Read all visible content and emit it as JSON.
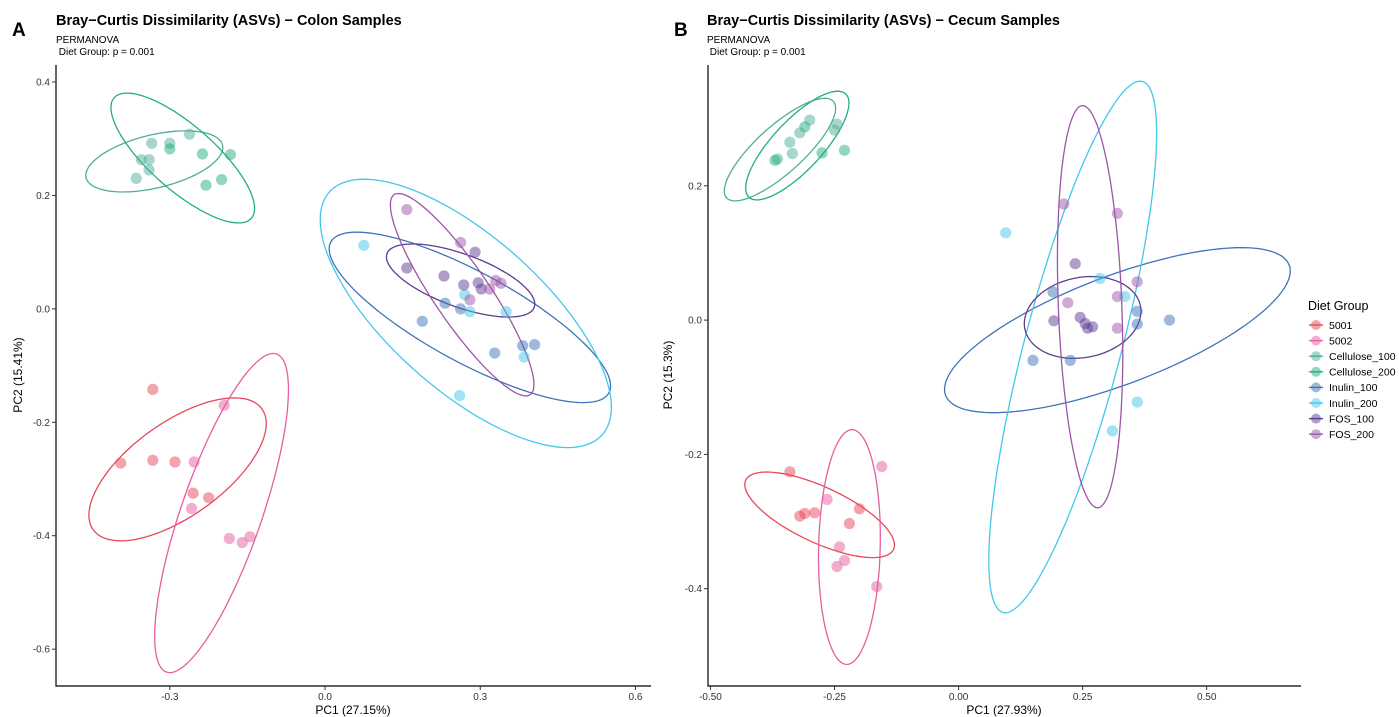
{
  "legend": {
    "title": "Diet Group",
    "groups": [
      "5001",
      "5002",
      "Cellulose_100",
      "Cellulose_200",
      "Inulin_100",
      "Inulin_200",
      "FOS_100",
      "FOS_200"
    ]
  },
  "colors": {
    "5001": "#e8485a",
    "5002": "#e75da0",
    "Cellulose_100": "#4fae99",
    "Cellulose_200": "#23ad85",
    "Inulin_100": "#3f74b6",
    "Inulin_200": "#43c8ea",
    "FOS_100": "#5f3d93",
    "FOS_200": "#9e55a9"
  },
  "chart_data": [
    {
      "type": "scatter",
      "tag": "A",
      "title": "Bray−Curtis Dissimilarity (ASVs) − Colon Samples",
      "subtitle_line1": "PERMANOVA",
      "subtitle_line2": " Diet Group: p = 0.001",
      "xlabel": "PC1 (27.15%)",
      "ylabel": "PC2 (15.41%)",
      "xlim": [
        -0.52,
        0.63
      ],
      "ylim": [
        -0.665,
        0.43
      ],
      "xticks": [
        -0.3,
        0.0,
        0.3,
        0.6
      ],
      "xtick_labels": [
        "-0.3",
        "0.0",
        "0.3",
        "0.6"
      ],
      "yticks": [
        -0.6,
        -0.4,
        -0.2,
        0.0,
        0.2,
        0.4
      ],
      "ytick_labels": [
        "-0.6",
        "-0.4",
        "-0.2",
        "0.0",
        "0.2",
        "0.4"
      ],
      "grid": false,
      "ellipses": [
        {
          "group": "5001",
          "cx": -0.285,
          "cy": -0.283,
          "rx": 0.195,
          "ry": 0.085,
          "angle": 32
        },
        {
          "group": "5002",
          "cx": -0.2,
          "cy": -0.36,
          "rx": 0.3,
          "ry": 0.077,
          "angle": 69
        },
        {
          "group": "Cellulose_100",
          "cx": -0.33,
          "cy": 0.26,
          "rx": 0.135,
          "ry": 0.047,
          "angle": 12
        },
        {
          "group": "Cellulose_200",
          "cx": -0.275,
          "cy": 0.266,
          "rx": 0.17,
          "ry": 0.059,
          "angle": -38
        },
        {
          "group": "Inulin_100",
          "cx": 0.28,
          "cy": -0.015,
          "rx": 0.3,
          "ry": 0.081,
          "angle": -26
        },
        {
          "group": "Inulin_200",
          "cx": 0.272,
          "cy": -0.008,
          "rx": 0.34,
          "ry": 0.14,
          "angle": -38
        },
        {
          "group": "FOS_100",
          "cx": 0.262,
          "cy": 0.05,
          "rx": 0.15,
          "ry": 0.047,
          "angle": -18
        },
        {
          "group": "FOS_200",
          "cx": 0.265,
          "cy": 0.025,
          "rx": 0.22,
          "ry": 0.052,
          "angle": -53
        }
      ],
      "points": [
        {
          "group": "5001",
          "x": -0.395,
          "y": -0.272
        },
        {
          "group": "5001",
          "x": -0.333,
          "y": -0.142
        },
        {
          "group": "5001",
          "x": -0.333,
          "y": -0.267
        },
        {
          "group": "5001",
          "x": -0.29,
          "y": -0.27
        },
        {
          "group": "5001",
          "x": -0.255,
          "y": -0.325
        },
        {
          "group": "5001",
          "x": -0.225,
          "y": -0.333
        },
        {
          "group": "5002",
          "x": -0.253,
          "y": -0.27
        },
        {
          "group": "5002",
          "x": -0.258,
          "y": -0.352
        },
        {
          "group": "5002",
          "x": -0.195,
          "y": -0.17
        },
        {
          "group": "5002",
          "x": -0.185,
          "y": -0.405
        },
        {
          "group": "5002",
          "x": -0.16,
          "y": -0.412
        },
        {
          "group": "5002",
          "x": -0.145,
          "y": -0.402
        },
        {
          "group": "Cellulose_100",
          "x": -0.365,
          "y": 0.23
        },
        {
          "group": "Cellulose_100",
          "x": -0.355,
          "y": 0.263
        },
        {
          "group": "Cellulose_100",
          "x": -0.34,
          "y": 0.245
        },
        {
          "group": "Cellulose_100",
          "x": -0.34,
          "y": 0.263
        },
        {
          "group": "Cellulose_100",
          "x": -0.335,
          "y": 0.292
        },
        {
          "group": "Cellulose_100",
          "x": -0.3,
          "y": 0.292
        },
        {
          "group": "Cellulose_100",
          "x": -0.262,
          "y": 0.308
        },
        {
          "group": "Cellulose_200",
          "x": -0.3,
          "y": 0.282
        },
        {
          "group": "Cellulose_200",
          "x": -0.237,
          "y": 0.273
        },
        {
          "group": "Cellulose_200",
          "x": -0.23,
          "y": 0.218
        },
        {
          "group": "Cellulose_200",
          "x": -0.2,
          "y": 0.228
        },
        {
          "group": "Cellulose_200",
          "x": -0.183,
          "y": 0.272
        },
        {
          "group": "Inulin_100",
          "x": 0.188,
          "y": -0.022
        },
        {
          "group": "Inulin_100",
          "x": 0.232,
          "y": 0.01
        },
        {
          "group": "Inulin_100",
          "x": 0.262,
          "y": 0.0
        },
        {
          "group": "Inulin_100",
          "x": 0.328,
          "y": -0.078
        },
        {
          "group": "Inulin_100",
          "x": 0.382,
          "y": -0.065
        },
        {
          "group": "Inulin_100",
          "x": 0.405,
          "y": -0.063
        },
        {
          "group": "Inulin_200",
          "x": 0.075,
          "y": 0.112
        },
        {
          "group": "Inulin_200",
          "x": 0.27,
          "y": 0.025
        },
        {
          "group": "Inulin_200",
          "x": 0.28,
          "y": -0.005
        },
        {
          "group": "Inulin_200",
          "x": 0.35,
          "y": -0.005
        },
        {
          "group": "Inulin_200",
          "x": 0.385,
          "y": -0.085
        },
        {
          "group": "Inulin_200",
          "x": 0.26,
          "y": -0.153
        },
        {
          "group": "FOS_100",
          "x": 0.158,
          "y": 0.072
        },
        {
          "group": "FOS_100",
          "x": 0.23,
          "y": 0.058
        },
        {
          "group": "FOS_100",
          "x": 0.268,
          "y": 0.042
        },
        {
          "group": "FOS_100",
          "x": 0.29,
          "y": 0.1
        },
        {
          "group": "FOS_100",
          "x": 0.296,
          "y": 0.046
        },
        {
          "group": "FOS_100",
          "x": 0.302,
          "y": 0.035
        },
        {
          "group": "FOS_200",
          "x": 0.158,
          "y": 0.175
        },
        {
          "group": "FOS_200",
          "x": 0.262,
          "y": 0.117
        },
        {
          "group": "FOS_200",
          "x": 0.28,
          "y": 0.016
        },
        {
          "group": "FOS_200",
          "x": 0.318,
          "y": 0.035
        },
        {
          "group": "FOS_200",
          "x": 0.33,
          "y": 0.05
        },
        {
          "group": "FOS_200",
          "x": 0.34,
          "y": 0.045
        }
      ]
    },
    {
      "type": "scatter",
      "tag": "B",
      "title": "Bray−Curtis Dissimilarity (ASVs) − Cecum Samples",
      "subtitle_line1": "PERMANOVA",
      "subtitle_line2": " Diet Group: p = 0.001",
      "xlabel": "PC1 (27.93%)",
      "ylabel": "PC2 (15.3%)",
      "xlim": [
        -0.505,
        0.69
      ],
      "ylim": [
        -0.545,
        0.38
      ],
      "xticks": [
        -0.5,
        -0.25,
        0.0,
        0.25,
        0.5
      ],
      "xtick_labels": [
        "-0.50",
        "-0.25",
        "0.00",
        "0.25",
        "0.50"
      ],
      "yticks": [
        -0.4,
        -0.2,
        0.0,
        0.2
      ],
      "ytick_labels": [
        "-0.4",
        "-0.2",
        "0.0",
        "0.2"
      ],
      "grid": false,
      "ellipses": [
        {
          "group": "5001",
          "cx": -0.28,
          "cy": -0.29,
          "rx": 0.158,
          "ry": 0.043,
          "angle": -18
        },
        {
          "group": "5002",
          "cx": -0.22,
          "cy": -0.338,
          "rx": 0.175,
          "ry": 0.062,
          "angle": 88
        },
        {
          "group": "Cellulose_100",
          "cx": -0.36,
          "cy": 0.254,
          "rx": 0.13,
          "ry": 0.039,
          "angle": 32
        },
        {
          "group": "Cellulose_200",
          "cx": -0.325,
          "cy": 0.26,
          "rx": 0.125,
          "ry": 0.042,
          "angle": 36
        },
        {
          "group": "Inulin_100",
          "cx": 0.32,
          "cy": -0.015,
          "rx": 0.36,
          "ry": 0.083,
          "angle": 15
        },
        {
          "group": "Inulin_200",
          "cx": 0.23,
          "cy": -0.04,
          "rx": 0.42,
          "ry": 0.095,
          "angle": 70
        },
        {
          "group": "FOS_100",
          "cx": 0.25,
          "cy": 0.004,
          "rx": 0.06,
          "ry": 0.118,
          "angle": 96
        },
        {
          "group": "FOS_200",
          "cx": 0.265,
          "cy": 0.02,
          "rx": 0.3,
          "ry": 0.064,
          "angle": 93
        }
      ],
      "points": [
        {
          "group": "5001",
          "x": -0.34,
          "y": -0.226
        },
        {
          "group": "5001",
          "x": -0.32,
          "y": -0.292
        },
        {
          "group": "5001",
          "x": -0.31,
          "y": -0.288
        },
        {
          "group": "5001",
          "x": -0.29,
          "y": -0.287
        },
        {
          "group": "5001",
          "x": -0.22,
          "y": -0.303
        },
        {
          "group": "5001",
          "x": -0.2,
          "y": -0.281
        },
        {
          "group": "5002",
          "x": -0.265,
          "y": -0.267
        },
        {
          "group": "5002",
          "x": -0.24,
          "y": -0.338
        },
        {
          "group": "5002",
          "x": -0.245,
          "y": -0.367
        },
        {
          "group": "5002",
          "x": -0.23,
          "y": -0.358
        },
        {
          "group": "5002",
          "x": -0.165,
          "y": -0.397
        },
        {
          "group": "5002",
          "x": -0.155,
          "y": -0.218
        },
        {
          "group": "Cellulose_100",
          "x": -0.365,
          "y": 0.24
        },
        {
          "group": "Cellulose_100",
          "x": -0.34,
          "y": 0.265
        },
        {
          "group": "Cellulose_100",
          "x": -0.335,
          "y": 0.248
        },
        {
          "group": "Cellulose_100",
          "x": -0.32,
          "y": 0.279
        },
        {
          "group": "Cellulose_100",
          "x": -0.3,
          "y": 0.298
        },
        {
          "group": "Cellulose_100",
          "x": -0.25,
          "y": 0.283
        },
        {
          "group": "Cellulose_100",
          "x": -0.245,
          "y": 0.292
        },
        {
          "group": "Cellulose_200",
          "x": -0.37,
          "y": 0.238
        },
        {
          "group": "Cellulose_200",
          "x": -0.31,
          "y": 0.288
        },
        {
          "group": "Cellulose_200",
          "x": -0.275,
          "y": 0.249
        },
        {
          "group": "Cellulose_200",
          "x": -0.23,
          "y": 0.253
        },
        {
          "group": "Inulin_100",
          "x": 0.15,
          "y": -0.06
        },
        {
          "group": "Inulin_100",
          "x": 0.19,
          "y": 0.042
        },
        {
          "group": "Inulin_100",
          "x": 0.225,
          "y": -0.06
        },
        {
          "group": "Inulin_100",
          "x": 0.36,
          "y": 0.013
        },
        {
          "group": "Inulin_100",
          "x": 0.36,
          "y": -0.006
        },
        {
          "group": "Inulin_100",
          "x": 0.425,
          "y": 0.0
        },
        {
          "group": "Inulin_200",
          "x": 0.095,
          "y": 0.13
        },
        {
          "group": "Inulin_200",
          "x": 0.285,
          "y": 0.062
        },
        {
          "group": "Inulin_200",
          "x": 0.335,
          "y": 0.035
        },
        {
          "group": "Inulin_200",
          "x": 0.36,
          "y": -0.122
        },
        {
          "group": "Inulin_200",
          "x": 0.31,
          "y": -0.165
        },
        {
          "group": "FOS_100",
          "x": 0.235,
          "y": 0.084
        },
        {
          "group": "FOS_100",
          "x": 0.192,
          "y": -0.001
        },
        {
          "group": "FOS_100",
          "x": 0.245,
          "y": 0.004
        },
        {
          "group": "FOS_100",
          "x": 0.255,
          "y": -0.005
        },
        {
          "group": "FOS_100",
          "x": 0.26,
          "y": -0.012
        },
        {
          "group": "FOS_100",
          "x": 0.27,
          "y": -0.01
        },
        {
          "group": "FOS_200",
          "x": 0.212,
          "y": 0.173
        },
        {
          "group": "FOS_200",
          "x": 0.32,
          "y": 0.159
        },
        {
          "group": "FOS_200",
          "x": 0.22,
          "y": 0.026
        },
        {
          "group": "FOS_200",
          "x": 0.36,
          "y": 0.057
        },
        {
          "group": "FOS_200",
          "x": 0.32,
          "y": 0.035
        },
        {
          "group": "FOS_200",
          "x": 0.32,
          "y": -0.012
        }
      ]
    }
  ]
}
